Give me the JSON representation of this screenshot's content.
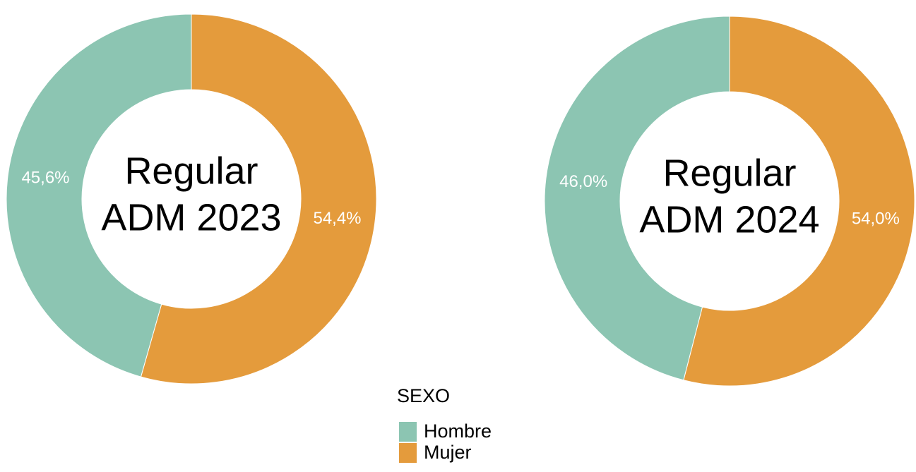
{
  "chart_data": [
    {
      "type": "pie",
      "title": [
        "Regular",
        "ADM 2023"
      ],
      "categories": [
        "Hombre",
        "Mujer"
      ],
      "values": [
        45.6,
        54.4
      ],
      "value_labels": [
        "45,6%",
        "54,4%"
      ],
      "colors": [
        "#8cc5b2",
        "#e49b3c"
      ],
      "donut": true
    },
    {
      "type": "pie",
      "title": [
        "Regular",
        "ADM 2024"
      ],
      "categories": [
        "Hombre",
        "Mujer"
      ],
      "values": [
        46.0,
        54.0
      ],
      "value_labels": [
        "46,0%",
        "54,0%"
      ],
      "colors": [
        "#8cc5b2",
        "#e49b3c"
      ],
      "donut": true
    }
  ],
  "legend": {
    "title": "SEXO"
  }
}
